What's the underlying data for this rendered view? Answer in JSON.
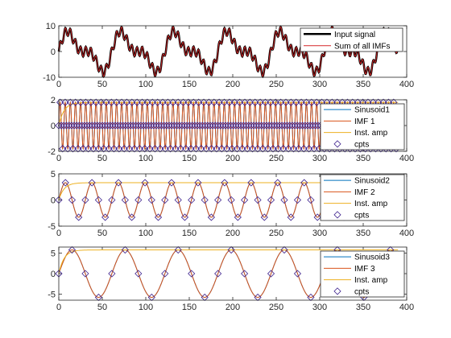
{
  "chart_data": [
    {
      "type": "line",
      "xlim": [
        0,
        400
      ],
      "ylim": [
        -10,
        10
      ],
      "xticks": [
        0,
        50,
        100,
        150,
        200,
        250,
        300,
        350,
        400
      ],
      "yticks": [
        -10,
        0,
        10
      ],
      "legend_position": "top-right",
      "series": [
        {
          "name": "Input signal",
          "color": "#000000",
          "linewidth": 2.5
        },
        {
          "name": "Sum of all IMFs",
          "color": "#d62728",
          "linewidth": 1
        }
      ],
      "signal": {
        "components": [
          {
            "amplitude": 1.8,
            "period": 5.9
          },
          {
            "amplitude": 3.3,
            "period": 30.5
          },
          {
            "amplitude": 5.8,
            "period": 61
          }
        ]
      }
    },
    {
      "type": "line",
      "xlim": [
        0,
        400
      ],
      "ylim": [
        -2,
        2
      ],
      "xticks": [
        0,
        50,
        100,
        150,
        200,
        250,
        300,
        350,
        400
      ],
      "yticks": [
        -2,
        0,
        2
      ],
      "legend_position": "top-right",
      "series": [
        {
          "name": "Sinusoid1",
          "color": "#0072bd"
        },
        {
          "name": "IMF 1",
          "color": "#d95319"
        },
        {
          "name": "Inst. amp",
          "color": "#edb120"
        },
        {
          "name": "cpts",
          "color": "#3b1f8c",
          "marker": "diamond"
        }
      ],
      "sinusoid": {
        "amplitude": 1.8,
        "period": 5.9,
        "phase_deg": 0
      },
      "inst_amp": 1.8,
      "cpts_points": "extrema and zero crossings"
    },
    {
      "type": "line",
      "xlim": [
        0,
        400
      ],
      "ylim": [
        -5,
        5
      ],
      "xticks": [
        0,
        50,
        100,
        150,
        200,
        250,
        300,
        350,
        400
      ],
      "yticks": [
        -5,
        0,
        5
      ],
      "legend_position": "top-right",
      "series": [
        {
          "name": "Sinusoid2",
          "color": "#0072bd"
        },
        {
          "name": "IMF 2",
          "color": "#d95319"
        },
        {
          "name": "Inst. amp",
          "color": "#edb120"
        },
        {
          "name": "cpts",
          "color": "#3b1f8c",
          "marker": "diamond"
        }
      ],
      "sinusoid": {
        "amplitude": 3.3,
        "period": 30.5,
        "phase_deg": 0
      },
      "inst_amp": 3.3,
      "cpts_points": "extrema and zero crossings"
    },
    {
      "type": "line",
      "xlim": [
        0,
        400
      ],
      "ylim": [
        -6.5,
        6.5
      ],
      "xticks": [
        0,
        50,
        100,
        150,
        200,
        250,
        300,
        350,
        400
      ],
      "yticks": [
        -5,
        0,
        5
      ],
      "legend_position": "top-right",
      "series": [
        {
          "name": "Sinusoid3",
          "color": "#0072bd"
        },
        {
          "name": "IMF 3",
          "color": "#d95319"
        },
        {
          "name": "Inst. amp",
          "color": "#edb120"
        },
        {
          "name": "cpts",
          "color": "#3b1f8c",
          "marker": "diamond"
        }
      ],
      "sinusoid": {
        "amplitude": 5.8,
        "period": 61,
        "phase_deg": 0
      },
      "inst_amp": 5.8,
      "cpts_points": "extrema and zero crossings"
    }
  ]
}
